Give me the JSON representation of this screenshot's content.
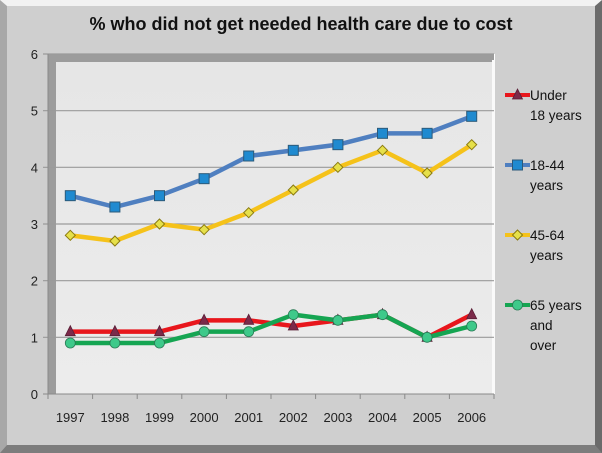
{
  "chart_data": {
    "type": "line",
    "title": "% who did not get needed health care due to cost",
    "xlabel": "",
    "ylabel": "",
    "categories": [
      "1997",
      "1998",
      "1999",
      "2000",
      "2001",
      "2002",
      "2003",
      "2004",
      "2005",
      "2006"
    ],
    "ylim": [
      0,
      6
    ],
    "yticks": [
      "0",
      "1",
      "2",
      "3",
      "4",
      "5",
      "6"
    ],
    "grid": true,
    "legend_position": "right",
    "series": [
      {
        "name": "Under 18 years",
        "legend_lines": [
          "Under",
          "18 years"
        ],
        "color": "#e8161c",
        "marker": "triangle",
        "marker_color": "#7b2a4a",
        "values": [
          1.1,
          1.1,
          1.1,
          1.3,
          1.3,
          1.2,
          1.3,
          1.4,
          1.0,
          1.4
        ]
      },
      {
        "name": "18-44 years",
        "legend_lines": [
          "18-44",
          "years"
        ],
        "color": "#4f7fc0",
        "marker": "square",
        "marker_color": "#1f8ad0",
        "values": [
          3.5,
          3.3,
          3.5,
          3.8,
          4.2,
          4.3,
          4.4,
          4.6,
          4.6,
          4.9
        ]
      },
      {
        "name": "45-64 years",
        "legend_lines": [
          "45-64",
          "years"
        ],
        "color": "#f5c21a",
        "marker": "diamond",
        "marker_color": "#e6e04a",
        "values": [
          2.8,
          2.7,
          3.0,
          2.9,
          3.2,
          3.6,
          4.0,
          4.3,
          3.9,
          4.4
        ]
      },
      {
        "name": "65 years and over",
        "legend_lines": [
          "65 years",
          "and",
          "over"
        ],
        "color": "#15a552",
        "marker": "circle",
        "marker_color": "#3ec98a",
        "values": [
          0.9,
          0.9,
          0.9,
          1.1,
          1.1,
          1.4,
          1.3,
          1.4,
          1.0,
          1.2
        ]
      }
    ]
  }
}
